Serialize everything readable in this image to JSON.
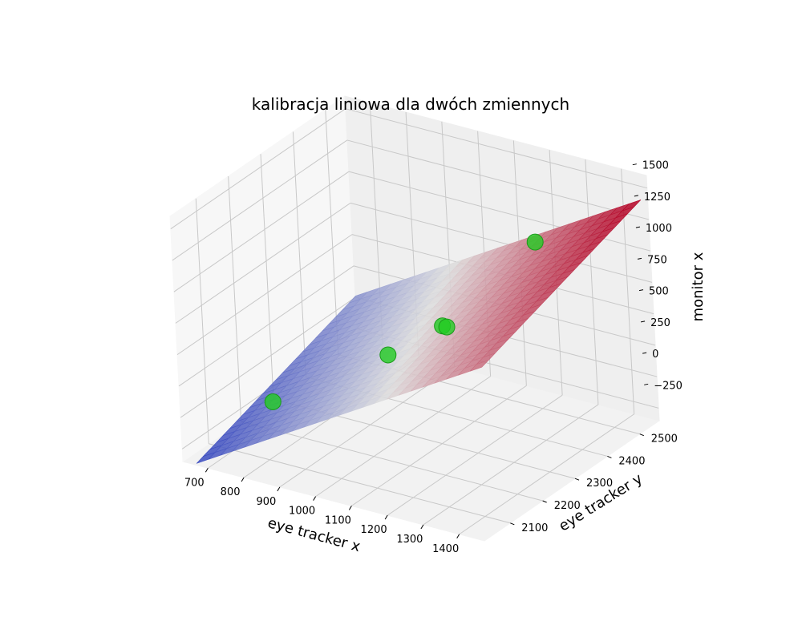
{
  "chart_data": {
    "type": "scatter",
    "subtype": "3d-scatter-with-fitted-plane",
    "title": "kalibracja liniowa dla dwóch zmiennych",
    "xlabel": "eye tracker x",
    "ylabel": "eye tracker y",
    "zlabel": "monitor x",
    "xlim": [
      630,
      1470
    ],
    "ylim": [
      2020,
      2560
    ],
    "zlim": [
      -350,
      1600
    ],
    "xticks": [
      "700",
      "800",
      "900",
      "1000",
      "1100",
      "1200",
      "1300",
      "1400"
    ],
    "yticks": [
      "2100",
      "2200",
      "2300",
      "2400",
      "2500"
    ],
    "zticks": [
      "−250",
      "0",
      "250",
      "500",
      "750",
      "1000",
      "1250",
      "1500"
    ],
    "grid": true,
    "points": {
      "color": "#22cc22",
      "x": [
        770,
        960,
        1080,
        1130,
        1250
      ],
      "y": [
        2150,
        2300,
        2340,
        2300,
        2450
      ],
      "z": [
        0,
        250,
        500,
        600,
        1100
      ]
    },
    "surface": {
      "colormap": [
        "#3b4cc0",
        "#dddddd",
        "#b40426"
      ],
      "x_range": [
        640,
        1460
      ],
      "y_range": [
        2050,
        2550
      ],
      "model": "z = a*x + b*y + c"
    }
  }
}
